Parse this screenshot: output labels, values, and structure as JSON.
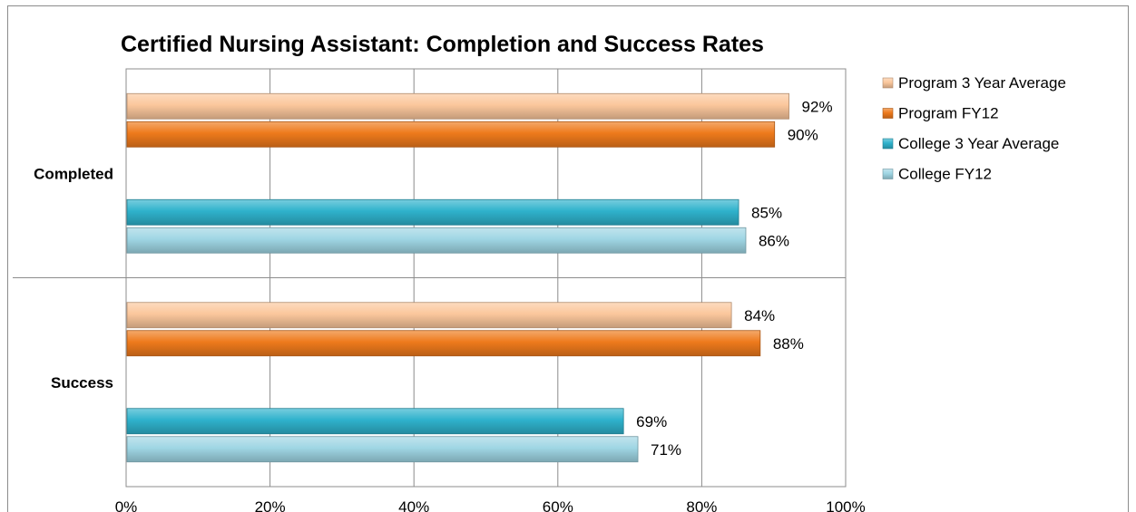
{
  "chart_data": {
    "type": "bar",
    "orientation": "horizontal",
    "title": "Certified Nursing Assistant: Completion and Success Rates",
    "categories": [
      "Completed",
      "Success"
    ],
    "series": [
      {
        "name": "Program 3 Year Average",
        "values": [
          92,
          84
        ],
        "color": "#fbc79c"
      },
      {
        "name": "Program FY12",
        "values": [
          90,
          88
        ],
        "color": "#ee7a1c"
      },
      {
        "name": "College 3 Year Average",
        "values": [
          85,
          69
        ],
        "color": "#2fb2cc"
      },
      {
        "name": "College FY12",
        "values": [
          86,
          71
        ],
        "color": "#9fd6e4"
      }
    ],
    "xlim": [
      0,
      100
    ],
    "xticks": [
      "0%",
      "20%",
      "40%",
      "60%",
      "80%",
      "100%"
    ],
    "value_suffix": "%",
    "grid": "vertical",
    "legend": "right"
  }
}
